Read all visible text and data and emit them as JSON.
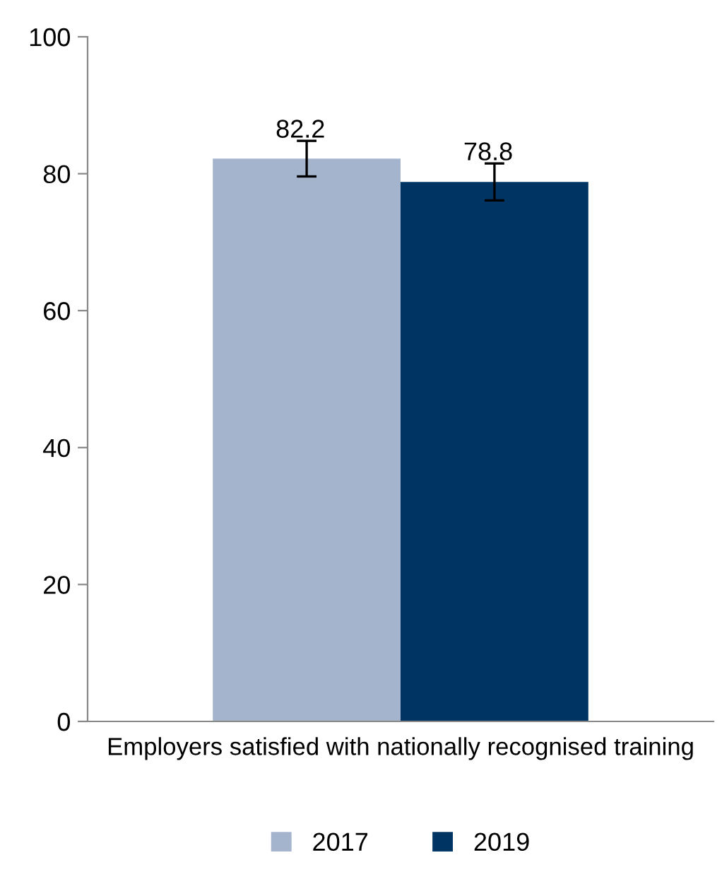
{
  "chart_data": {
    "type": "bar",
    "categories": [
      "Employers satisfied with nationally recognised training"
    ],
    "series": [
      {
        "name": "2017",
        "color": "#a5b4cd",
        "values": [
          82.2
        ],
        "errors": [
          [
            79.6,
            84.8
          ]
        ]
      },
      {
        "name": "2019",
        "color": "#003462",
        "values": [
          78.8
        ],
        "errors": [
          [
            76.1,
            81.5
          ]
        ]
      }
    ],
    "ylim": [
      0,
      100
    ],
    "yticks": [
      0,
      20,
      40,
      60,
      80,
      100
    ],
    "grid": false,
    "legend": "bottom",
    "data_labels": true
  }
}
